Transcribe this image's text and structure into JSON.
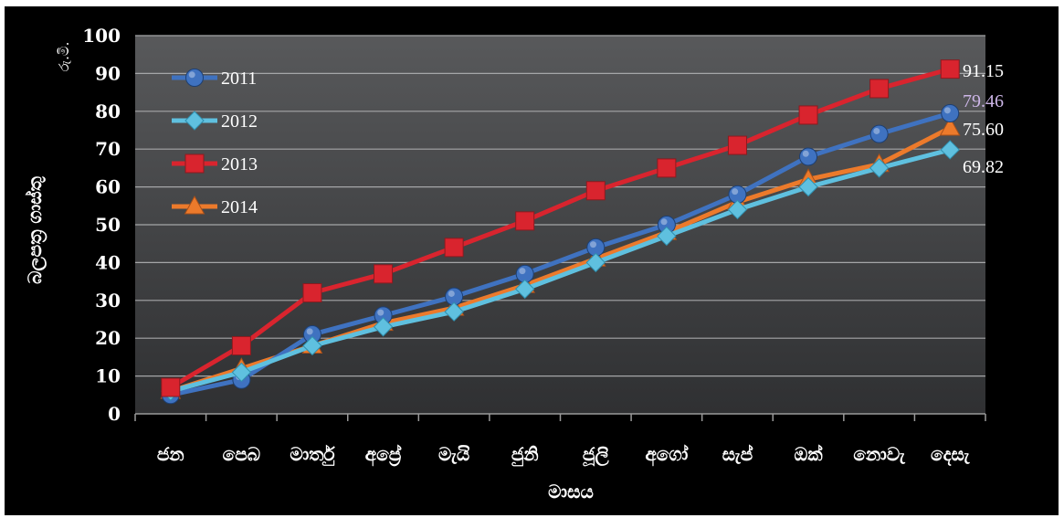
{
  "chart_data": {
    "type": "line",
    "title": "",
    "xlabel": "මාසය",
    "ylabel": "බලපත්‍ර ගාස්තු",
    "unit_label": "රු.මි.",
    "categories": [
      "ජන",
      "පෙබ",
      "මාර්තු",
      "අප්‍රේ",
      "මැයි",
      "ජුනි",
      "ජූලි",
      "අගෝ",
      "සැප්",
      "ඔක්",
      "නොවැ",
      "දෙසැ"
    ],
    "ylim": [
      0,
      100
    ],
    "yticks": [
      "0",
      "10",
      "20",
      "30",
      "40",
      "50",
      "60",
      "70",
      "80",
      "90",
      "100"
    ],
    "grid": true,
    "legend_position": "top-left",
    "series": [
      {
        "name": "2011",
        "color": "#3f72c0",
        "marker": "circle",
        "values": [
          5,
          9,
          21,
          26,
          31,
          37,
          44,
          50,
          58,
          68,
          74,
          79.46
        ]
      },
      {
        "name": "2012",
        "color": "#5fc0df",
        "marker": "diamond",
        "values": [
          6,
          11,
          18,
          23,
          27,
          33,
          40,
          47,
          54,
          60,
          65,
          69.82
        ]
      },
      {
        "name": "2013",
        "color": "#d9242e",
        "marker": "square",
        "values": [
          7,
          18,
          32,
          37,
          44,
          51,
          59,
          65,
          71,
          79,
          86,
          91.15
        ]
      },
      {
        "name": "2014",
        "color": "#ec7a2b",
        "marker": "triangle",
        "values": [
          6,
          12,
          18,
          24,
          28,
          34,
          41,
          48,
          56,
          62,
          66,
          75.6
        ]
      }
    ],
    "end_labels": [
      {
        "text": "91.15",
        "color": "#ffffff",
        "value": 91.15
      },
      {
        "text": "79.46",
        "color": "#cdb6e8",
        "value": 79.46
      },
      {
        "text": "75.60",
        "color": "#ffffff",
        "value": 75.6
      },
      {
        "text": "69.82",
        "color": "#ffffff",
        "value": 69.82
      }
    ]
  }
}
